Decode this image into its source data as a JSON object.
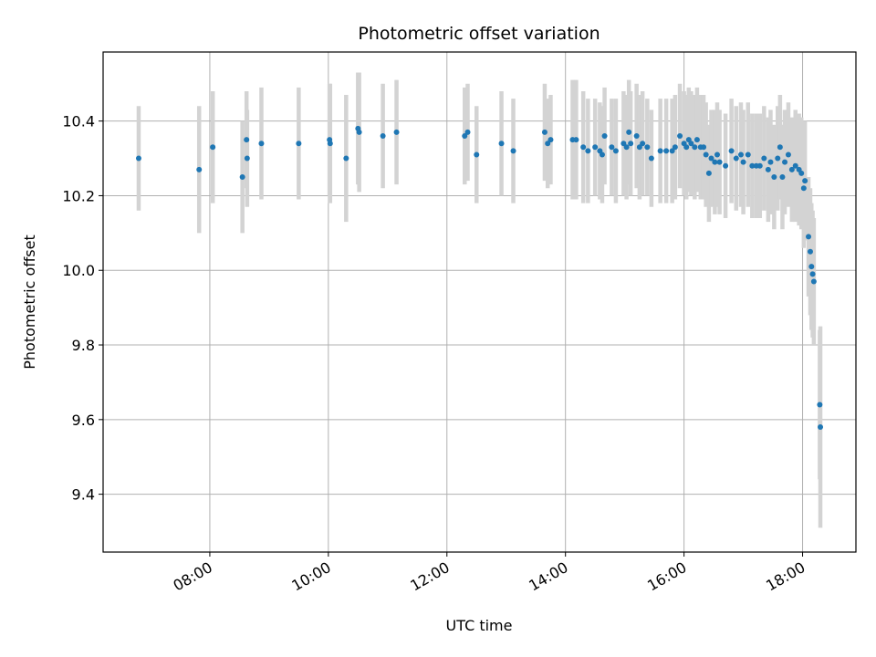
{
  "chart_data": {
    "type": "scatter",
    "title": "Photometric offset variation",
    "xlabel": "UTC time",
    "ylabel": "Photometric offset",
    "x_unit": "hours (UTC)",
    "xlim": [
      6.2,
      18.9
    ],
    "ylim": [
      9.245,
      10.585
    ],
    "xticks": [
      {
        "value": 8,
        "label": "08:00"
      },
      {
        "value": 10,
        "label": "10:00"
      },
      {
        "value": 12,
        "label": "12:00"
      },
      {
        "value": 14,
        "label": "14:00"
      },
      {
        "value": 16,
        "label": "16:00"
      },
      {
        "value": 18,
        "label": "18:00"
      }
    ],
    "yticks": [
      {
        "value": 9.4,
        "label": "9.4"
      },
      {
        "value": 9.6,
        "label": "9.6"
      },
      {
        "value": 9.8,
        "label": "9.8"
      },
      {
        "value": 10.0,
        "label": "10.0"
      },
      {
        "value": 10.2,
        "label": "10.2"
      },
      {
        "value": 10.4,
        "label": "10.4"
      }
    ],
    "grid": true,
    "colors": {
      "point": "#1f77b4",
      "errorbar": "#d3d3d3",
      "grid": "#b0b0b0"
    },
    "series": [
      {
        "points": [
          [
            6.8,
            10.3,
            0.14
          ],
          [
            7.82,
            10.27,
            0.17
          ],
          [
            8.05,
            10.33,
            0.15
          ],
          [
            8.55,
            10.25,
            0.15
          ],
          [
            8.62,
            10.35,
            0.13
          ],
          [
            8.63,
            10.3,
            0.13
          ],
          [
            8.87,
            10.34,
            0.15
          ],
          [
            9.5,
            10.34,
            0.15
          ],
          [
            10.02,
            10.35,
            0.15
          ],
          [
            10.03,
            10.34,
            0.16
          ],
          [
            10.3,
            10.3,
            0.17
          ],
          [
            10.5,
            10.38,
            0.15
          ],
          [
            10.52,
            10.37,
            0.16
          ],
          [
            10.92,
            10.36,
            0.14
          ],
          [
            11.15,
            10.37,
            0.14
          ],
          [
            12.3,
            10.36,
            0.13
          ],
          [
            12.35,
            10.37,
            0.13
          ],
          [
            12.5,
            10.31,
            0.13
          ],
          [
            12.92,
            10.34,
            0.14
          ],
          [
            13.12,
            10.32,
            0.14
          ],
          [
            13.65,
            10.37,
            0.13
          ],
          [
            13.7,
            10.34,
            0.12
          ],
          [
            13.75,
            10.35,
            0.12
          ],
          [
            14.12,
            10.35,
            0.16
          ],
          [
            14.18,
            10.35,
            0.16
          ],
          [
            14.3,
            10.33,
            0.15
          ],
          [
            14.38,
            10.32,
            0.14
          ],
          [
            14.5,
            10.33,
            0.13
          ],
          [
            14.58,
            10.32,
            0.13
          ],
          [
            14.62,
            10.31,
            0.13
          ],
          [
            14.66,
            10.36,
            0.13
          ],
          [
            14.78,
            10.33,
            0.13
          ],
          [
            14.85,
            10.32,
            0.14
          ],
          [
            14.98,
            10.34,
            0.14
          ],
          [
            15.03,
            10.33,
            0.14
          ],
          [
            15.07,
            10.37,
            0.14
          ],
          [
            15.1,
            10.34,
            0.14
          ],
          [
            15.2,
            10.36,
            0.14
          ],
          [
            15.25,
            10.33,
            0.14
          ],
          [
            15.3,
            10.34,
            0.14
          ],
          [
            15.38,
            10.33,
            0.13
          ],
          [
            15.45,
            10.3,
            0.13
          ],
          [
            15.6,
            10.32,
            0.14
          ],
          [
            15.7,
            10.32,
            0.14
          ],
          [
            15.8,
            10.32,
            0.14
          ],
          [
            15.85,
            10.33,
            0.14
          ],
          [
            15.93,
            10.36,
            0.14
          ],
          [
            16.0,
            10.34,
            0.14
          ],
          [
            16.04,
            10.33,
            0.14
          ],
          [
            16.08,
            10.35,
            0.14
          ],
          [
            16.12,
            10.34,
            0.14
          ],
          [
            16.18,
            10.33,
            0.14
          ],
          [
            16.22,
            10.35,
            0.14
          ],
          [
            16.28,
            10.33,
            0.14
          ],
          [
            16.33,
            10.33,
            0.14
          ],
          [
            16.37,
            10.31,
            0.14
          ],
          [
            16.42,
            10.26,
            0.13
          ],
          [
            16.46,
            10.3,
            0.13
          ],
          [
            16.52,
            10.29,
            0.14
          ],
          [
            16.56,
            10.31,
            0.14
          ],
          [
            16.6,
            10.29,
            0.14
          ],
          [
            16.7,
            10.28,
            0.14
          ],
          [
            16.8,
            10.32,
            0.14
          ],
          [
            16.88,
            10.3,
            0.14
          ],
          [
            16.96,
            10.31,
            0.14
          ],
          [
            17.0,
            10.29,
            0.14
          ],
          [
            17.08,
            10.31,
            0.14
          ],
          [
            17.15,
            10.28,
            0.14
          ],
          [
            17.22,
            10.28,
            0.14
          ],
          [
            17.28,
            10.28,
            0.14
          ],
          [
            17.35,
            10.3,
            0.14
          ],
          [
            17.42,
            10.27,
            0.14
          ],
          [
            17.46,
            10.29,
            0.14
          ],
          [
            17.52,
            10.25,
            0.14
          ],
          [
            17.58,
            10.3,
            0.14
          ],
          [
            17.62,
            10.33,
            0.14
          ],
          [
            17.66,
            10.25,
            0.14
          ],
          [
            17.7,
            10.29,
            0.14
          ],
          [
            17.76,
            10.31,
            0.14
          ],
          [
            17.82,
            10.27,
            0.14
          ],
          [
            17.88,
            10.28,
            0.15
          ],
          [
            17.94,
            10.27,
            0.15
          ],
          [
            17.98,
            10.26,
            0.15
          ],
          [
            18.02,
            10.22,
            0.16
          ],
          [
            18.04,
            10.24,
            0.16
          ],
          [
            18.1,
            10.09,
            0.16
          ],
          [
            18.13,
            10.05,
            0.17
          ],
          [
            18.15,
            10.01,
            0.17
          ],
          [
            18.17,
            9.99,
            0.17
          ],
          [
            18.19,
            9.97,
            0.17
          ],
          [
            18.29,
            9.64,
            0.2
          ],
          [
            18.3,
            9.58,
            0.27
          ]
        ]
      }
    ]
  }
}
